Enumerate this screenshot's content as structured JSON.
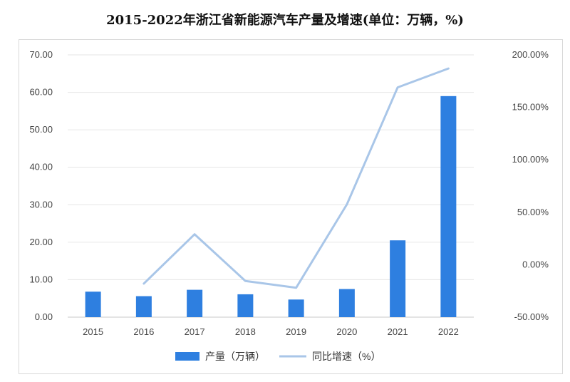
{
  "title": "2015-2022年浙江省新能源汽车产量及增速(单位：万辆，%)",
  "chart_data": {
    "type": "bar+line",
    "categories": [
      "2015",
      "2016",
      "2017",
      "2018",
      "2019",
      "2020",
      "2021",
      "2022"
    ],
    "series": [
      {
        "name": "产量（万辆）",
        "type": "bar",
        "axis": "left",
        "color": "#2e7fe0",
        "values": [
          6.8,
          5.6,
          7.3,
          6.1,
          4.7,
          7.5,
          20.5,
          59.0
        ]
      },
      {
        "name": "同比增速（%）",
        "type": "line",
        "axis": "right",
        "color": "#a9c6e8",
        "values": [
          null,
          -18.0,
          29.0,
          -15.5,
          -22.0,
          57.5,
          169.0,
          187.0
        ]
      }
    ],
    "y_left": {
      "ylim": [
        0,
        70
      ],
      "ticks": [
        0,
        10,
        20,
        30,
        40,
        50,
        60,
        70
      ],
      "tick_labels": [
        "0.00",
        "10.00",
        "20.00",
        "30.00",
        "40.00",
        "50.00",
        "60.00",
        "70.00"
      ]
    },
    "y_right": {
      "ylim": [
        -50,
        200
      ],
      "ticks": [
        -50,
        0,
        50,
        100,
        150,
        200
      ],
      "tick_labels": [
        "-50.00%",
        "0.00%",
        "50.00%",
        "100.00%",
        "150.00%",
        "200.00%"
      ]
    },
    "grid": true,
    "legend_position": "bottom-center"
  }
}
